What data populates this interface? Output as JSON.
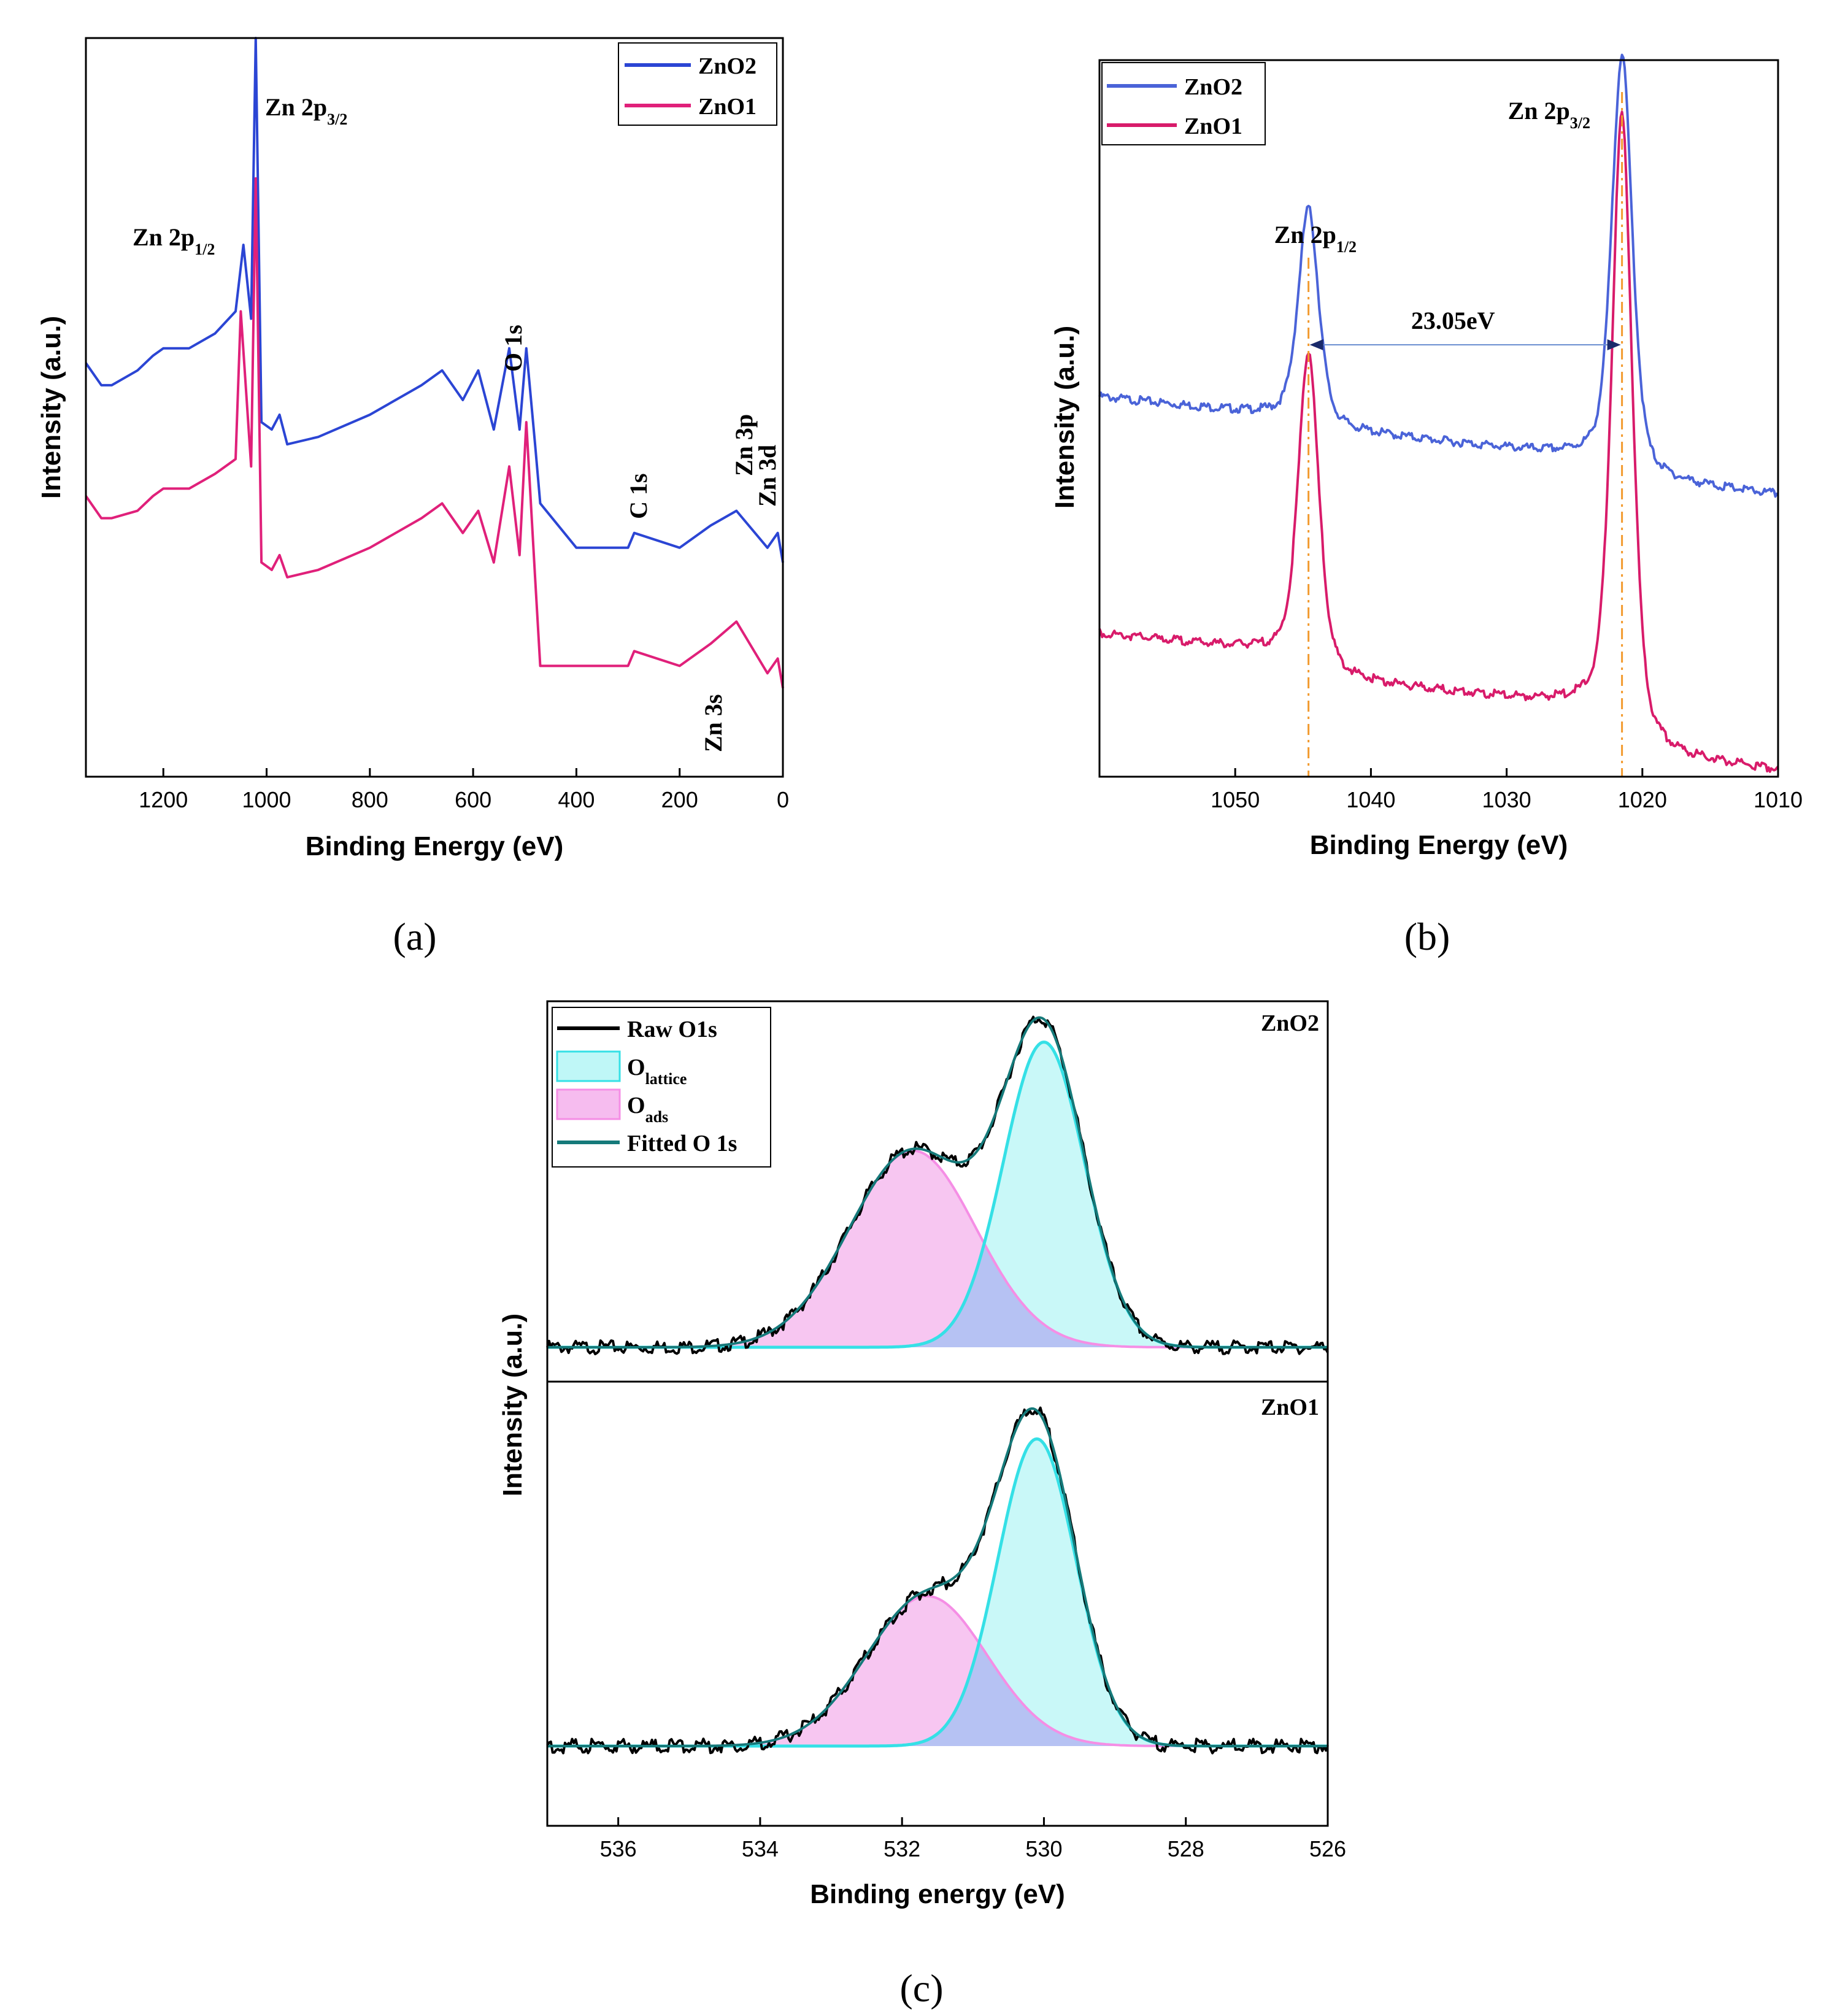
{
  "chart_data": [
    {
      "panel_label": "(a)",
      "type": "line",
      "xlabel": "Binding Energy (eV)",
      "ylabel": "Intensity (a.u.)",
      "xlim": [
        1350,
        0
      ],
      "x_reversed": true,
      "xticks": [
        1200,
        1000,
        800,
        600,
        400,
        200,
        0
      ],
      "y_ticks_shown": false,
      "legend": {
        "placement": "top-right",
        "entries": [
          {
            "name": "ZnO2",
            "color": "#2b45d4"
          },
          {
            "name": "ZnO1",
            "color": "#e0207a"
          }
        ]
      },
      "series": [
        {
          "name": "ZnO2",
          "color": "#2b45d4",
          "baseline": 0.55,
          "x": [
            1350,
            1320,
            1300,
            1250,
            1220,
            1200,
            1150,
            1100,
            1060,
            1045,
            1030,
            1021,
            1010,
            990,
            975,
            960,
            900,
            800,
            700,
            660,
            620,
            590,
            560,
            530,
            510,
            497,
            480,
            470,
            400,
            300,
            288,
            200,
            140,
            90,
            30,
            10,
            0
          ],
          "y": [
            0.56,
            0.53,
            0.53,
            0.55,
            0.57,
            0.58,
            0.58,
            0.6,
            0.63,
            0.72,
            0.62,
            1.0,
            0.48,
            0.47,
            0.49,
            0.45,
            0.46,
            0.49,
            0.53,
            0.55,
            0.51,
            0.55,
            0.47,
            0.58,
            0.47,
            0.58,
            0.45,
            0.37,
            0.31,
            0.31,
            0.33,
            0.31,
            0.34,
            0.36,
            0.31,
            0.33,
            0.29
          ]
        },
        {
          "name": "ZnO1",
          "color": "#e0207a",
          "baseline": 0.35,
          "x": [
            1350,
            1320,
            1300,
            1250,
            1220,
            1200,
            1150,
            1100,
            1060,
            1050,
            1030,
            1021,
            1010,
            990,
            975,
            960,
            900,
            800,
            700,
            660,
            620,
            590,
            560,
            530,
            510,
            497,
            480,
            470,
            400,
            300,
            288,
            200,
            140,
            90,
            30,
            10,
            0
          ],
          "y": [
            0.38,
            0.35,
            0.35,
            0.36,
            0.38,
            0.39,
            0.39,
            0.41,
            0.43,
            0.63,
            0.42,
            0.81,
            0.29,
            0.28,
            0.3,
            0.27,
            0.28,
            0.31,
            0.35,
            0.37,
            0.33,
            0.36,
            0.29,
            0.42,
            0.3,
            0.48,
            0.27,
            0.15,
            0.15,
            0.15,
            0.17,
            0.15,
            0.18,
            0.21,
            0.14,
            0.16,
            0.12
          ]
        }
      ],
      "annotations": [
        {
          "main": "Zn 2p",
          "sub": "3/2",
          "x_data": 1021
        },
        {
          "main": "Zn 2p",
          "sub": "1/2",
          "x_data": 1045
        },
        {
          "main": "O 1s",
          "sub": "",
          "x_data": 530,
          "rotated": true
        },
        {
          "main": "C 1s",
          "sub": "",
          "x_data": 288,
          "rotated": true
        },
        {
          "main": "Zn 3p",
          "sub": "",
          "x_data": 90,
          "rotated": true
        },
        {
          "main": "Zn 3d",
          "sub": "",
          "x_data": 10,
          "rotated": true
        },
        {
          "main": "Zn 3s",
          "sub": "",
          "x_data": 140,
          "rotated": true
        }
      ]
    },
    {
      "panel_label": "(b)",
      "type": "line",
      "xlabel": "Binding Energy (eV)",
      "ylabel": "Intensity (a.u.)",
      "xlim": [
        1060,
        1010
      ],
      "x_reversed": true,
      "xticks": [
        1050,
        1040,
        1030,
        1020,
        1010
      ],
      "y_ticks_shown": false,
      "legend": {
        "placement": "top-left",
        "entries": [
          {
            "name": "ZnO2",
            "color": "#4a63d8"
          },
          {
            "name": "ZnO1",
            "color": "#d81b6a"
          }
        ]
      },
      "peaks_ev": [
        1044.6,
        1021.5
      ],
      "separation_label": "23.05eV",
      "annotations": [
        {
          "main": "Zn 2p",
          "sub": "1/2",
          "x_data": 1044.6
        },
        {
          "main": "Zn 2p",
          "sub": "3/2",
          "x_data": 1021.5
        }
      ],
      "series": [
        {
          "name": "ZnO2",
          "color": "#4a63d8",
          "background": [
            0.53,
            0.43
          ],
          "peaks": [
            {
              "center": 1044.6,
              "height": 0.3,
              "width": 0.75
            },
            {
              "center": 1021.5,
              "height": 0.58,
              "width": 0.75
            }
          ]
        },
        {
          "name": "ZnO1",
          "color": "#d81b6a",
          "background": [
            0.2,
            0.1
          ],
          "peaks": [
            {
              "center": 1044.6,
              "height": 0.44,
              "width": 0.75
            },
            {
              "center": 1021.5,
              "height": 0.86,
              "width": 0.75
            }
          ]
        }
      ]
    },
    {
      "panel_label": "(c)",
      "type": "area",
      "xlabel": "Binding energy (eV)",
      "ylabel": "Intensity (a.u.)",
      "xlim": [
        537,
        526
      ],
      "x_reversed": true,
      "xticks": [
        536,
        534,
        532,
        530,
        528,
        526
      ],
      "y_ticks_shown": false,
      "legend": {
        "placement": "top-left",
        "entries": [
          {
            "name": "Raw O1s",
            "sub": "",
            "color": "#000000",
            "kind": "line"
          },
          {
            "name": "O",
            "sub": "lattice",
            "color": "#bff7f7",
            "border": "#35e0e6",
            "kind": "box"
          },
          {
            "name": "O",
            "sub": "ads",
            "color": "#f6bcef",
            "border": "#f58ee5",
            "kind": "box"
          },
          {
            "name": "Fitted O 1s",
            "sub": "",
            "color": "#157a7a",
            "kind": "line"
          }
        ]
      },
      "subplots": [
        {
          "sample": "ZnO2",
          "components": [
            {
              "name": "O_lattice",
              "center": 530.0,
              "fwhm": 1.35,
              "height": 0.9
            },
            {
              "name": "O_ads",
              "center": 531.85,
              "fwhm": 2.1,
              "height": 0.58
            }
          ]
        },
        {
          "sample": "ZnO1",
          "components": [
            {
              "name": "O_lattice",
              "center": 530.1,
              "fwhm": 1.3,
              "height": 0.86
            },
            {
              "name": "O_ads",
              "center": 531.65,
              "fwhm": 2.0,
              "height": 0.42
            }
          ]
        }
      ]
    }
  ]
}
